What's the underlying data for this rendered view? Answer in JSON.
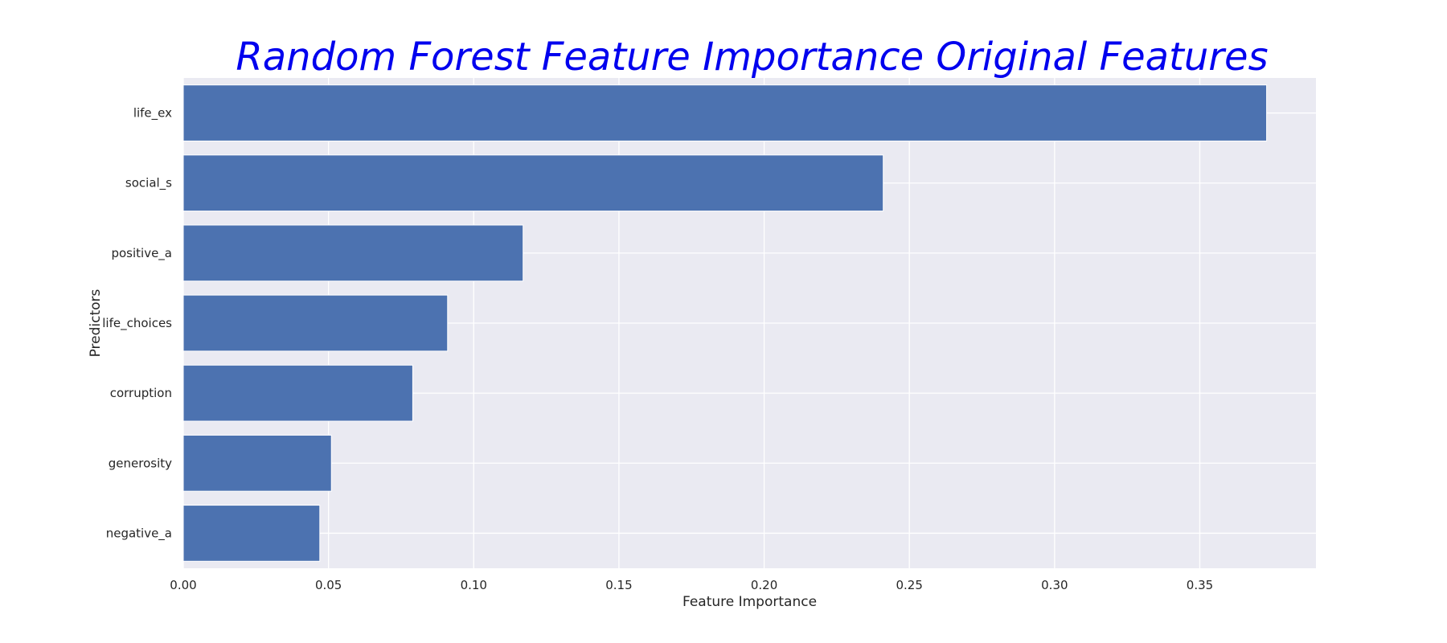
{
  "chart_data": {
    "type": "bar",
    "orientation": "horizontal",
    "title": "Random Forest Feature Importance Original Features",
    "xlabel": "Feature Importance",
    "ylabel": "Predictors",
    "categories": [
      "life_ex",
      "social_s",
      "positive_a",
      "life_choices",
      "corruption",
      "generosity",
      "negative_a"
    ],
    "values": [
      0.373,
      0.241,
      0.117,
      0.091,
      0.079,
      0.051,
      0.047
    ],
    "xlim": [
      0,
      0.39
    ],
    "xticks": [
      "0.00",
      "0.05",
      "0.10",
      "0.15",
      "0.20",
      "0.25",
      "0.30",
      "0.35"
    ],
    "grid": true,
    "legend": "none"
  },
  "colors": {
    "bar": "#4c72b0",
    "plot_background": "#eaeaf2",
    "grid": "#ffffff",
    "title": "#0000ee"
  }
}
